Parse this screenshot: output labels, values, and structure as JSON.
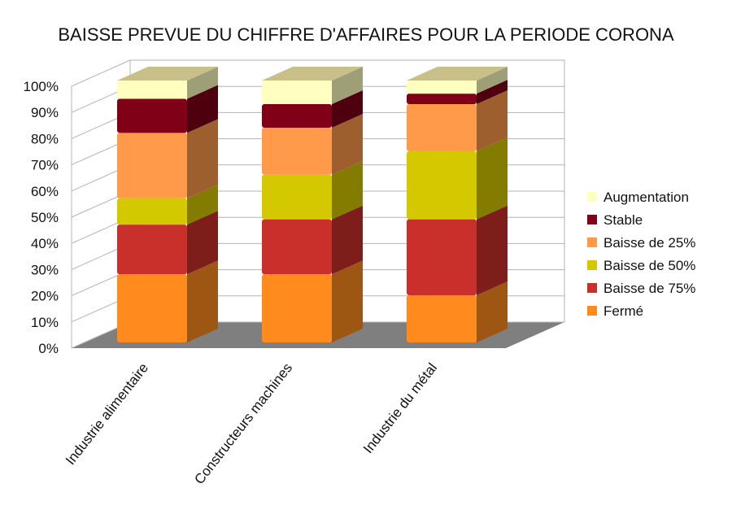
{
  "chart_data": {
    "type": "bar",
    "stacked": true,
    "three_d": true,
    "title": "BAISSE PREVUE DU CHIFFRE D'AFFAIRES POUR LA PERIODE CORONA",
    "xlabel": "",
    "ylabel": "",
    "ylim": [
      0,
      100
    ],
    "y_tick_step": 10,
    "y_tick_suffix": "%",
    "grid": true,
    "legend_position": "right",
    "categories": [
      "Industrie alimentaire",
      "Constructeurs machines",
      "Industrie du métal"
    ],
    "series": [
      {
        "name": "Fermé",
        "color": "#ff8a1e",
        "values": [
          26,
          26,
          18
        ]
      },
      {
        "name": "Baisse de 75%",
        "color": "#c9302c",
        "values": [
          19,
          21,
          29
        ]
      },
      {
        "name": "Baisse de 50%",
        "color": "#d4c800",
        "values": [
          10,
          17,
          26
        ]
      },
      {
        "name": "Baisse de 25%",
        "color": "#ff9a4a",
        "values": [
          25,
          18,
          18
        ]
      },
      {
        "name": "Stable",
        "color": "#800018",
        "values": [
          13,
          9,
          4
        ]
      },
      {
        "name": "Augmentation",
        "color": "#ffffc0",
        "values": [
          7,
          9,
          5
        ]
      }
    ]
  }
}
